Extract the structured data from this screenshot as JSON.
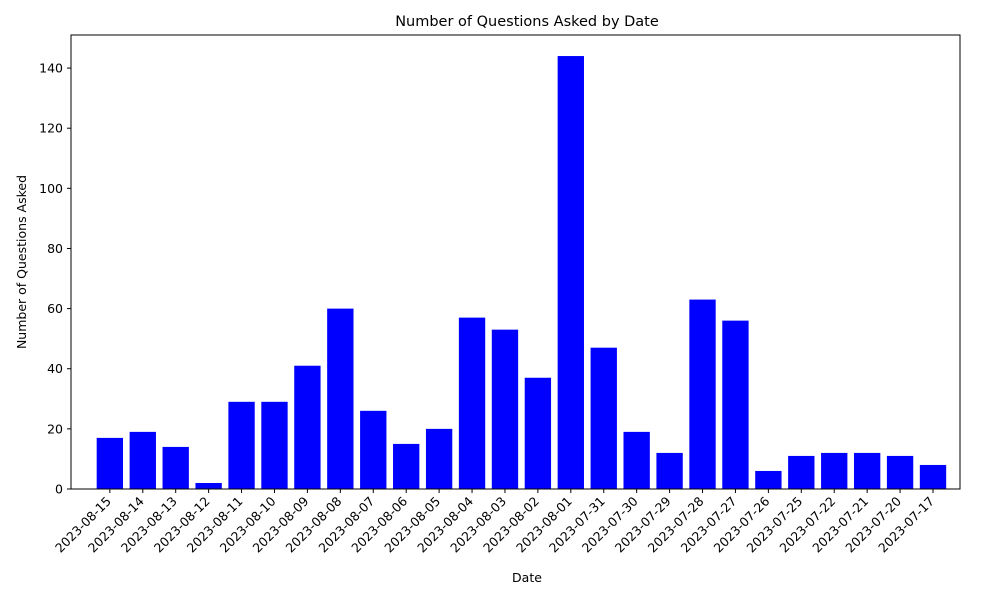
{
  "chart_data": {
    "type": "bar",
    "title": "Number of Questions Asked by Date",
    "xlabel": "Date",
    "ylabel": "Number of Questions Asked",
    "ylim": [
      0,
      151
    ],
    "yticks": [
      0,
      20,
      40,
      60,
      80,
      100,
      120,
      140
    ],
    "grid": false,
    "bar_color": "#0000ff",
    "categories": [
      "2023-08-15",
      "2023-08-14",
      "2023-08-13",
      "2023-08-12",
      "2023-08-11",
      "2023-08-10",
      "2023-08-09",
      "2023-08-08",
      "2023-08-07",
      "2023-08-06",
      "2023-08-05",
      "2023-08-04",
      "2023-08-03",
      "2023-08-02",
      "2023-08-01",
      "2023-07-31",
      "2023-07-30",
      "2023-07-29",
      "2023-07-28",
      "2023-07-27",
      "2023-07-26",
      "2023-07-25",
      "2023-07-22",
      "2023-07-21",
      "2023-07-20",
      "2023-07-17"
    ],
    "values": [
      17,
      19,
      14,
      2,
      29,
      29,
      41,
      60,
      26,
      15,
      20,
      57,
      53,
      37,
      144,
      47,
      19,
      12,
      63,
      56,
      6,
      11,
      12,
      12,
      11,
      8
    ]
  }
}
